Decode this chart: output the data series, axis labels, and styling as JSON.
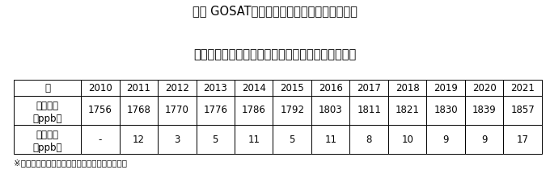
{
  "title_line1": "表１ GOSATによるメタンの全大気平均濃度の",
  "title_line2": "年平均値と年増加量（前年の年平均値からの増分）",
  "footnote": "※四捨五入のため、端数が一部変わっています。",
  "years": [
    "年",
    "2010",
    "2011",
    "2012",
    "2013",
    "2014",
    "2015",
    "2016",
    "2017",
    "2018",
    "2019",
    "2020",
    "2021"
  ],
  "row1_label_line1": "年平均値",
  "row1_label_line2": "（ppb）",
  "row1_values": [
    "1756",
    "1768",
    "1770",
    "1776",
    "1786",
    "1792",
    "1803",
    "1811",
    "1821",
    "1830",
    "1839",
    "1857"
  ],
  "row2_label_line1": "年増加量",
  "row2_label_line2": "（ppb）",
  "row2_values": [
    "-",
    "12",
    "3",
    "5",
    "11",
    "5",
    "11",
    "8",
    "10",
    "9",
    "9",
    "17"
  ],
  "bg_color": "#ffffff",
  "text_color": "#000000",
  "border_color": "#000000",
  "cell_bg": "#ffffff",
  "title_fontsize": 10.5,
  "table_fontsize": 8.5,
  "footnote_fontsize": 7.5
}
